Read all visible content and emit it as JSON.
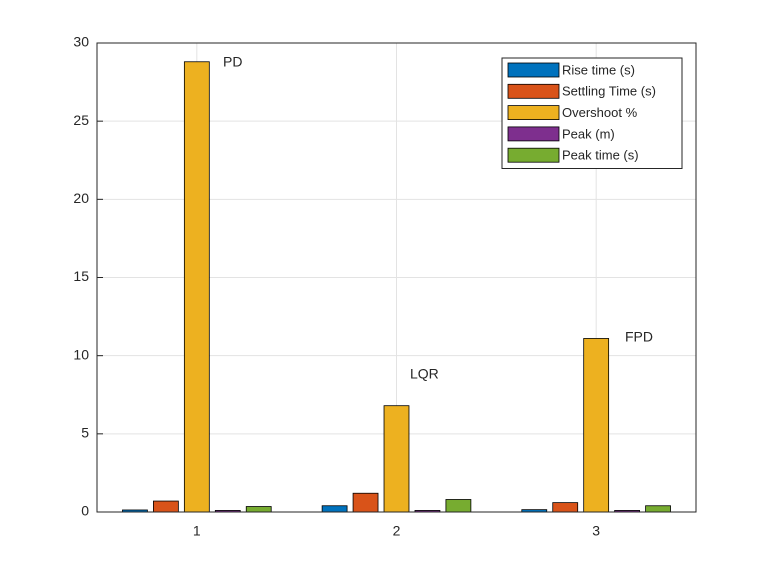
{
  "chart_data": {
    "type": "bar",
    "categories": [
      "1",
      "2",
      "3"
    ],
    "series": [
      {
        "name": "Rise time (s)",
        "color": "#0072BD",
        "values": [
          0.13,
          0.4,
          0.15
        ]
      },
      {
        "name": "Settling Time (s)",
        "color": "#D95319",
        "values": [
          0.7,
          1.2,
          0.6
        ]
      },
      {
        "name": "Overshoot %",
        "color": "#EDB120",
        "values": [
          28.8,
          6.8,
          11.1
        ]
      },
      {
        "name": "Peak (m)",
        "color": "#7E2F8E",
        "values": [
          0.1,
          0.1,
          0.1
        ]
      },
      {
        "name": "Peak time (s)",
        "color": "#77AC30",
        "values": [
          0.35,
          0.8,
          0.4
        ]
      }
    ],
    "annotations": [
      "PD",
      "LQR",
      "FPD"
    ],
    "ylim": [
      0,
      30
    ],
    "yticks": [
      0,
      5,
      10,
      15,
      20,
      25,
      30
    ],
    "grid": true,
    "legend": "northeast"
  }
}
